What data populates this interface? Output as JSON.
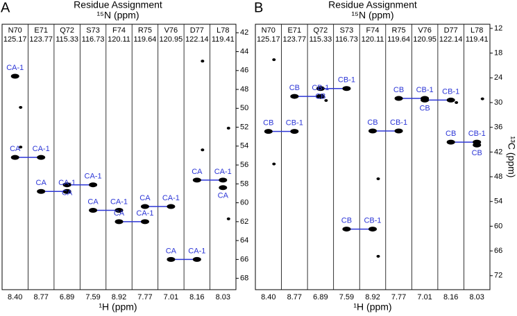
{
  "chart_data": [
    {
      "type": "strip",
      "panel_label": "A",
      "title": "Residue Assignment",
      "top_label": "¹⁵N (ppm)",
      "xlabel": "¹H (ppm)",
      "categories": [
        "N70",
        "E71",
        "Q72",
        "S73",
        "F74",
        "R75",
        "V76",
        "D77",
        "L78"
      ],
      "n_ppm": [
        125.17,
        123.77,
        115.33,
        116.73,
        120.11,
        119.64,
        120.95,
        122.14,
        119.41
      ],
      "h_ppm": [
        {
          "value": 8.4,
          "label": "8.40"
        },
        {
          "value": 8.77,
          "label": "8.77"
        },
        {
          "value": 6.89,
          "label": "6.89"
        },
        {
          "value": 7.59,
          "label": "7.59"
        },
        {
          "value": 8.92,
          "label": "8.92"
        },
        {
          "value": 7.77,
          "label": "7.77"
        },
        {
          "value": 7.01,
          "label": "7.01"
        },
        {
          "value": 8.16,
          "label": "8.16"
        },
        {
          "value": 8.03,
          "label": "8.03"
        }
      ],
      "ylim": [
        41.1,
        69.2
      ],
      "yticks": [
        42,
        44,
        46,
        48,
        50,
        52,
        54,
        56,
        58,
        60,
        62,
        64,
        66,
        68
      ],
      "y_inverted": true,
      "color": "#2b35d6",
      "connections": [
        {
          "strips": [
            0,
            1
          ],
          "ppm": [
            55.2,
            55.2
          ],
          "labels": [
            "CA",
            "CA-1"
          ]
        },
        {
          "strips": [
            1,
            2
          ],
          "ppm": [
            58.8,
            58.8
          ],
          "labels": [
            "CA",
            "CA-1"
          ]
        },
        {
          "strips": [
            2,
            3
          ],
          "ppm": [
            58.1,
            58.1
          ],
          "labels": [
            "CA",
            "CA-1"
          ]
        },
        {
          "strips": [
            3,
            4
          ],
          "ppm": [
            60.8,
            60.8
          ],
          "labels": [
            "CA",
            "CA-1"
          ]
        },
        {
          "strips": [
            4,
            5
          ],
          "ppm": [
            62.0,
            62.0
          ],
          "labels": [
            "CA",
            "CA-1"
          ]
        },
        {
          "strips": [
            5,
            6
          ],
          "ppm": [
            60.4,
            60.4
          ],
          "labels": [
            "CA",
            "CA-1"
          ]
        },
        {
          "strips": [
            6,
            7
          ],
          "ppm": [
            66.0,
            66.0
          ],
          "labels": [
            "CA",
            "CA-1"
          ]
        },
        {
          "strips": [
            7,
            8
          ],
          "ppm": [
            57.6,
            57.6
          ],
          "labels": [
            "CA",
            "CA-1"
          ]
        }
      ],
      "peaks": [
        {
          "strip": 0,
          "ppm": 46.6,
          "label": "CA-1"
        },
        {
          "strip": 8,
          "ppm": 58.4,
          "label": "CA"
        }
      ],
      "other_peaks": {
        "strip": [
          0,
          0,
          7,
          7,
          8,
          8
        ],
        "ppm": [
          49.9,
          54.1,
          45.0,
          54.4,
          52.1,
          61.7
        ]
      }
    },
    {
      "type": "strip",
      "panel_label": "B",
      "title": "Residue Assignment",
      "top_label": "¹⁵N (ppm)",
      "xlabel": "¹H (ppm)",
      "ylabel": "¹³C (ppm)",
      "categories": [
        "N70",
        "E71",
        "Q72",
        "S73",
        "F74",
        "R75",
        "V76",
        "D77",
        "L78"
      ],
      "n_ppm": [
        125.17,
        123.77,
        115.33,
        116.73,
        120.11,
        119.64,
        120.95,
        122.14,
        119.41
      ],
      "h_ppm": [
        {
          "value": 8.4,
          "label": "8.40"
        },
        {
          "value": 8.77,
          "label": "8.77"
        },
        {
          "value": 6.89,
          "label": "6.89"
        },
        {
          "value": 7.59,
          "label": "7.59"
        },
        {
          "value": 8.92,
          "label": "8.92"
        },
        {
          "value": 7.77,
          "label": "7.77"
        },
        {
          "value": 7.01,
          "label": "7.01"
        },
        {
          "value": 8.16,
          "label": "8.16"
        },
        {
          "value": 8.03,
          "label": "8.03"
        }
      ],
      "ylim": [
        11.0,
        75.4
      ],
      "yticks": [
        12,
        18,
        24,
        30,
        36,
        42,
        48,
        54,
        60,
        66,
        72
      ],
      "y_inverted": true,
      "color": "#2b35d6",
      "connections": [
        {
          "strips": [
            0,
            1
          ],
          "ppm": [
            37.0,
            37.0
          ],
          "labels": [
            "CB",
            "CB-1"
          ]
        },
        {
          "strips": [
            1,
            2
          ],
          "ppm": [
            28.5,
            28.5
          ],
          "labels": [
            "CB",
            "CB-1"
          ]
        },
        {
          "strips": [
            2,
            3
          ],
          "ppm": [
            26.6,
            26.6
          ],
          "labels": [
            "CB",
            "CB-1"
          ]
        },
        {
          "strips": [
            3,
            4
          ],
          "ppm": [
            60.7,
            60.7
          ],
          "labels": [
            "CB",
            "CB-1"
          ]
        },
        {
          "strips": [
            4,
            5
          ],
          "ppm": [
            36.9,
            36.9
          ],
          "labels": [
            "CB",
            "CB-1"
          ]
        },
        {
          "strips": [
            5,
            6
          ],
          "ppm": [
            29.0,
            29.0
          ],
          "labels": [
            "CB",
            "CB-1"
          ]
        },
        {
          "strips": [
            6,
            7
          ],
          "ppm": [
            29.4,
            29.4
          ],
          "labels": [
            "CB",
            "CB-1"
          ]
        },
        {
          "strips": [
            7,
            8
          ],
          "ppm": [
            39.6,
            39.6
          ],
          "labels": [
            "CB",
            "CB-1"
          ]
        }
      ],
      "peaks": [
        {
          "strip": 8,
          "ppm": 40.3,
          "label": "CB"
        }
      ],
      "other_peaks": {
        "strip": [
          0,
          0,
          2,
          4,
          4,
          8,
          7
        ],
        "ppm": [
          19.6,
          44.9,
          29.5,
          48.5,
          67.3,
          29.1,
          30.0
        ]
      }
    }
  ]
}
